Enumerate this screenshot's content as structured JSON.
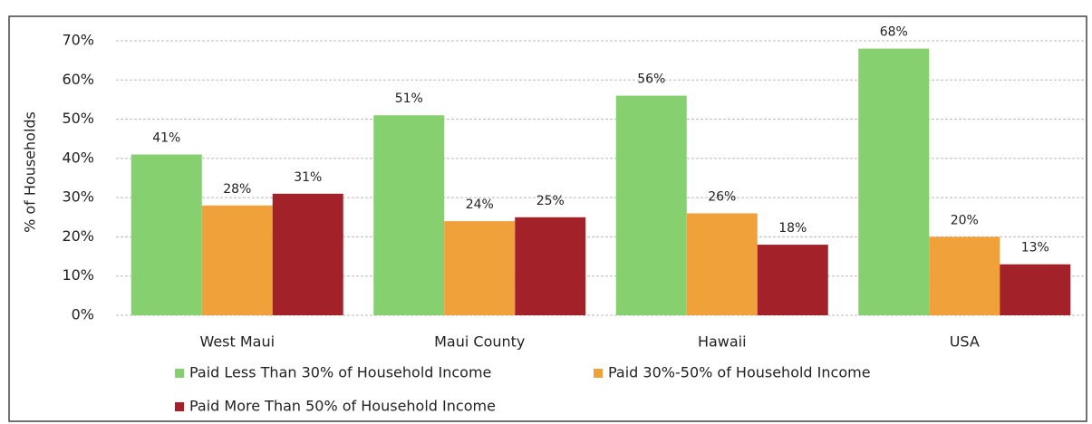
{
  "chart_data": {
    "type": "bar",
    "y_label": "% of Households",
    "categories": [
      "West Maui",
      "Maui County",
      "Hawaii",
      "USA"
    ],
    "series": [
      {
        "name": "Paid Less Than 30% of Household Income",
        "color": "#86d06f",
        "values": [
          41,
          51,
          56,
          68
        ],
        "value_labels": [
          "41%",
          "51%",
          "56%",
          "68%"
        ]
      },
      {
        "name": "Paid 30%-50% of Household Income",
        "color": "#f0a13a",
        "values": [
          28,
          24,
          26,
          20
        ],
        "value_labels": [
          "28%",
          "24%",
          "26%",
          "20%"
        ]
      },
      {
        "name": "Paid More Than 50% of Household Income",
        "color": "#a3222a",
        "values": [
          31,
          25,
          18,
          13
        ],
        "value_labels": [
          "31%",
          "25%",
          "18%",
          "13%"
        ]
      }
    ],
    "ylim": [
      0,
      70
    ],
    "yticks": [
      {
        "value": 0,
        "label": "0%"
      },
      {
        "value": 10,
        "label": "10%"
      },
      {
        "value": 20,
        "label": "20%"
      },
      {
        "value": 30,
        "label": "30%"
      },
      {
        "value": 40,
        "label": "40%"
      },
      {
        "value": 50,
        "label": "50%"
      },
      {
        "value": 60,
        "label": "60%"
      },
      {
        "value": 70,
        "label": "70%"
      }
    ],
    "grid": true
  }
}
